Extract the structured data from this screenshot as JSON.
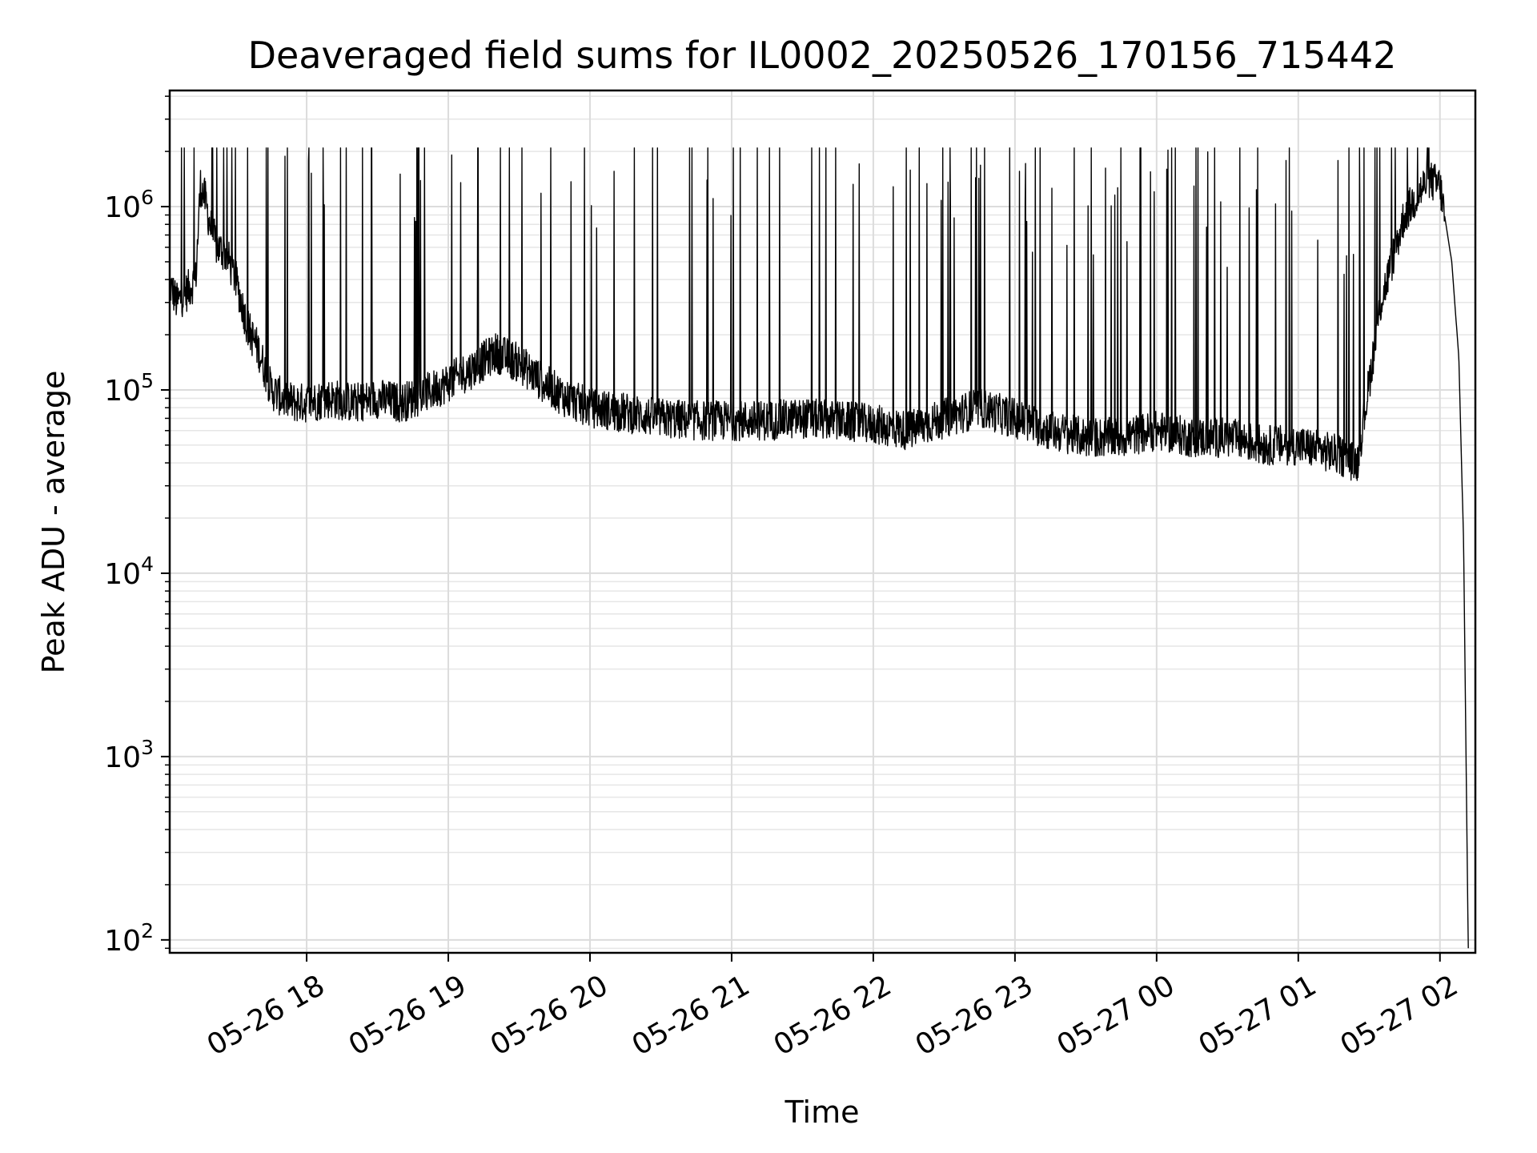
{
  "chart_data": {
    "type": "line",
    "title": "Deaveraged field sums for IL0002_20250526_170156_715442",
    "xlabel": "Time",
    "ylabel": "Peak ADU - average",
    "yscale": "log",
    "ylim": [
      85,
      4300000
    ],
    "xlim": [
      "2025-05-26 17:02",
      "2025-05-27 02:15"
    ],
    "grid": true,
    "line_color": "#000000",
    "x_ticks": [
      {
        "value": "2025-05-26 18:00",
        "label": "05-26 18"
      },
      {
        "value": "2025-05-26 19:00",
        "label": "05-26 19"
      },
      {
        "value": "2025-05-26 20:00",
        "label": "05-26 20"
      },
      {
        "value": "2025-05-26 21:00",
        "label": "05-26 21"
      },
      {
        "value": "2025-05-26 22:00",
        "label": "05-26 22"
      },
      {
        "value": "2025-05-26 23:00",
        "label": "05-26 23"
      },
      {
        "value": "2025-05-27 00:00",
        "label": "05-27 00"
      },
      {
        "value": "2025-05-27 01:00",
        "label": "05-27 01"
      },
      {
        "value": "2025-05-27 02:00",
        "label": "05-27 02"
      }
    ],
    "y_ticks": [
      {
        "value": 100,
        "base": "10",
        "exp": "2"
      },
      {
        "value": 1000,
        "base": "10",
        "exp": "3"
      },
      {
        "value": 10000,
        "base": "10",
        "exp": "4"
      },
      {
        "value": 100000,
        "base": "10",
        "exp": "5"
      },
      {
        "value": 1000000,
        "base": "10",
        "exp": "6"
      }
    ],
    "series": [
      {
        "x": [
          "2025-05-26 17:02",
          "2025-05-26 17:05",
          "2025-05-26 17:09",
          "2025-05-26 17:13",
          "2025-05-26 17:15",
          "2025-05-26 17:17",
          "2025-05-26 17:19",
          "2025-05-26 17:22",
          "2025-05-26 17:26",
          "2025-05-26 17:30",
          "2025-05-26 17:35",
          "2025-05-26 17:40",
          "2025-05-26 17:45",
          "2025-05-26 17:50",
          "2025-05-26 17:55",
          "2025-05-26 18:00",
          "2025-05-26 18:10",
          "2025-05-26 18:20",
          "2025-05-26 18:30",
          "2025-05-26 18:40",
          "2025-05-26 18:50",
          "2025-05-26 19:00",
          "2025-05-26 19:10",
          "2025-05-26 19:20",
          "2025-05-26 19:30",
          "2025-05-26 19:40",
          "2025-05-26 19:50",
          "2025-05-26 20:00",
          "2025-05-26 20:15",
          "2025-05-26 20:30",
          "2025-05-26 20:45",
          "2025-05-26 21:00",
          "2025-05-26 21:15",
          "2025-05-26 21:30",
          "2025-05-26 21:45",
          "2025-05-26 22:00",
          "2025-05-26 22:15",
          "2025-05-26 22:30",
          "2025-05-26 22:45",
          "2025-05-26 23:00",
          "2025-05-26 23:15",
          "2025-05-26 23:30",
          "2025-05-26 23:45",
          "2025-05-27 00:00",
          "2025-05-27 00:15",
          "2025-05-27 00:30",
          "2025-05-27 00:45",
          "2025-05-27 01:00",
          "2025-05-27 01:15",
          "2025-05-27 01:25",
          "2025-05-27 01:35",
          "2025-05-27 01:45",
          "2025-05-27 01:55",
          "2025-05-27 02:00",
          "2025-05-27 02:05",
          "2025-05-27 02:08",
          "2025-05-27 02:10",
          "2025-05-27 02:12"
        ],
        "y": [
          380000,
          300000,
          340000,
          400000,
          1300000,
          1100000,
          800000,
          600000,
          550000,
          400000,
          220000,
          160000,
          100000,
          90000,
          85000,
          85000,
          90000,
          85000,
          90000,
          85000,
          95000,
          110000,
          130000,
          160000,
          140000,
          110000,
          90000,
          80000,
          75000,
          70000,
          68000,
          68000,
          68000,
          70000,
          68000,
          65000,
          60000,
          70000,
          80000,
          70000,
          60000,
          55000,
          55000,
          60000,
          55000,
          55000,
          50000,
          50000,
          45000,
          40000,
          300000,
          900000,
          1400000,
          1300000,
          500000,
          150000,
          15000,
          90
        ]
      }
    ]
  }
}
